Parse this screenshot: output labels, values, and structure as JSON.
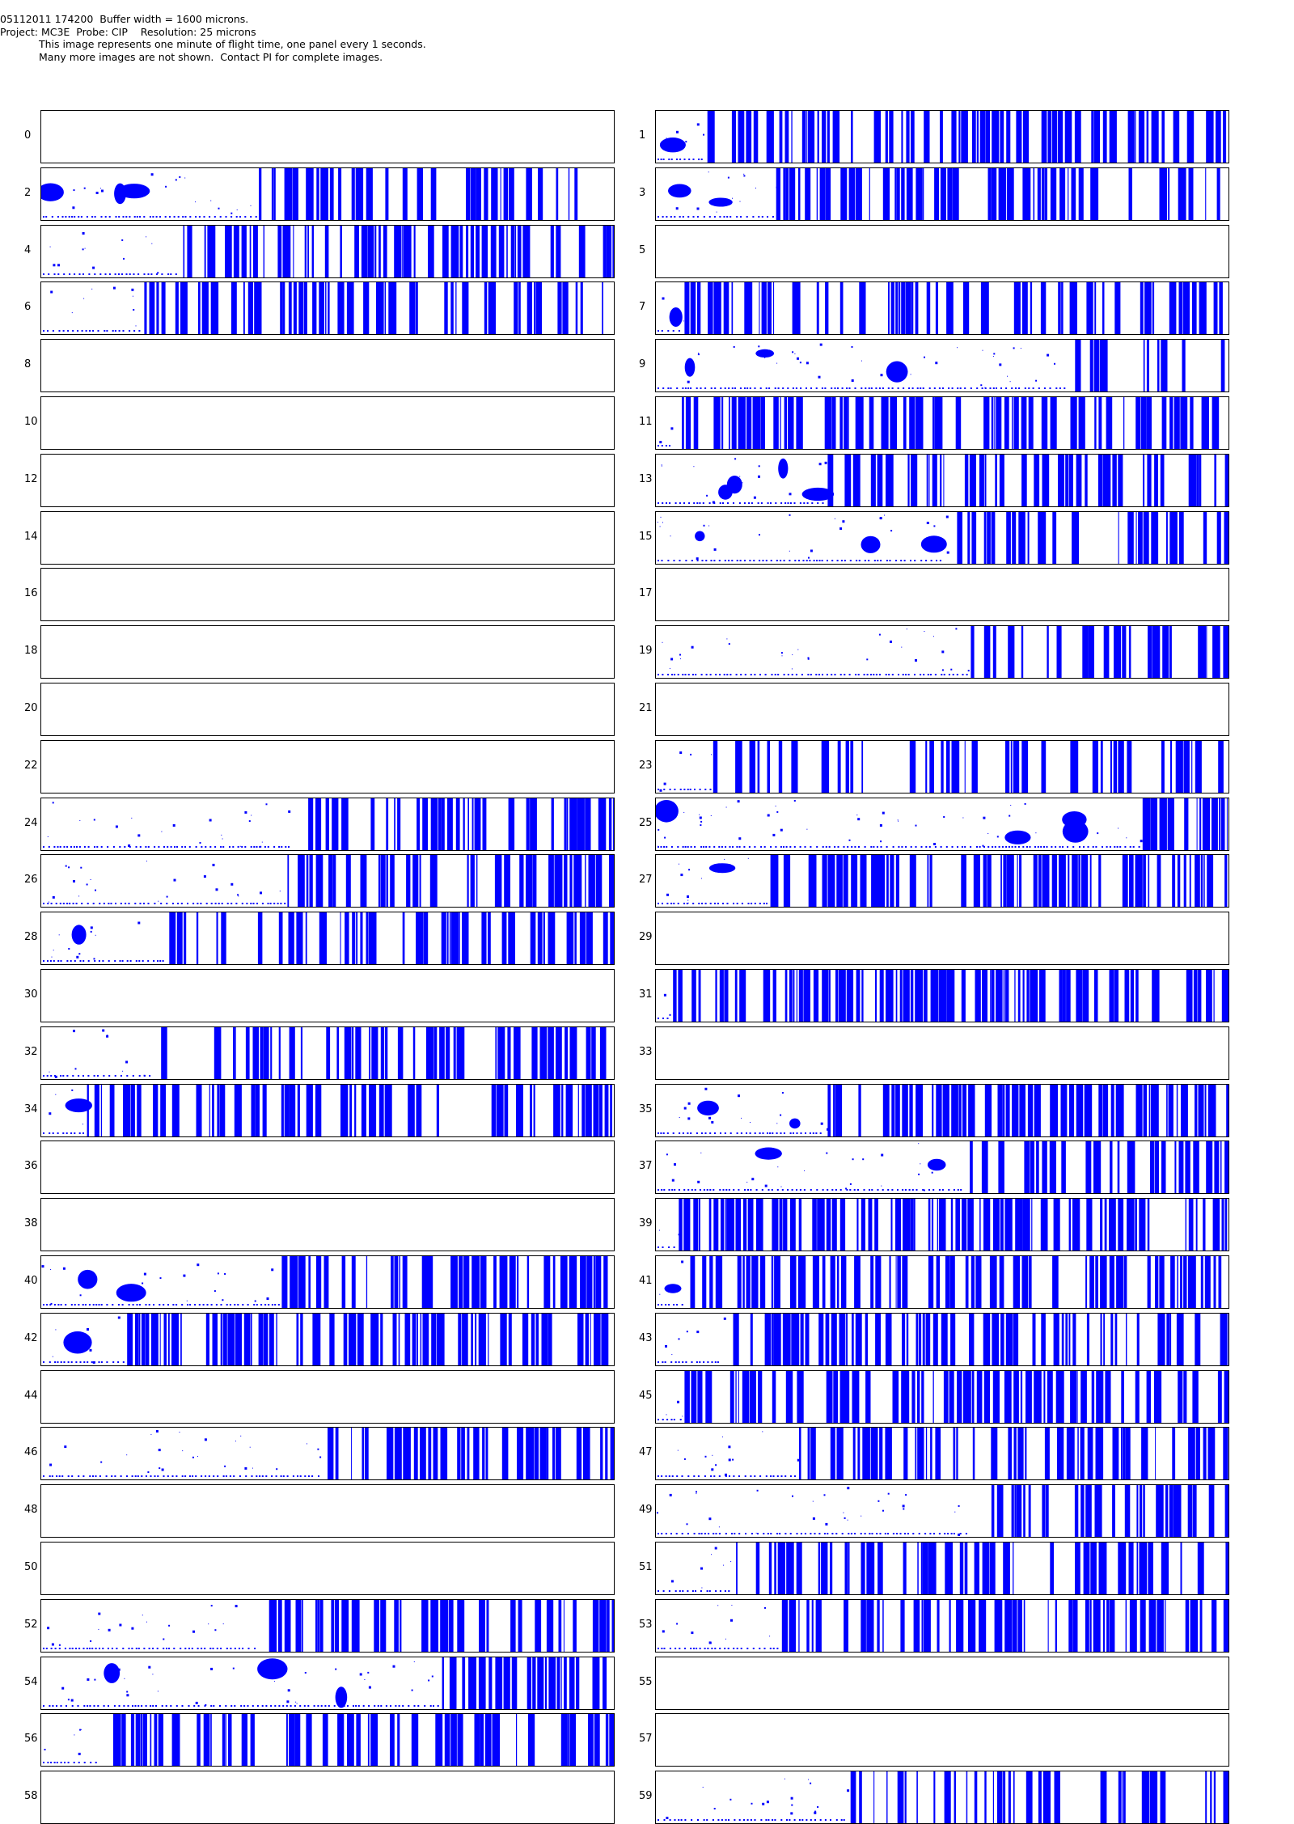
{
  "header": {
    "line1": "05112011 174200  Buffer width = 1600 microns.",
    "line2": "Project: MC3E  Probe: CIP    Resolution: 25 microns",
    "line3": "This image represents one minute of flight time, one panel every 1 seconds.",
    "line4": "Many more images are not shown.  Contact PI for complete images."
  },
  "colors": {
    "particle": "#0000ff",
    "border": "#000000"
  },
  "panels": [
    {
      "label": "0",
      "start": 1.0,
      "density": 0,
      "blobs": 0
    },
    {
      "label": "1",
      "start": 0.09,
      "density": 0.72,
      "blobs": 1
    },
    {
      "label": "2",
      "start": 0.38,
      "density": 0.55,
      "blobs": 3
    },
    {
      "label": "3",
      "start": 0.21,
      "density": 0.6,
      "blobs": 2
    },
    {
      "label": "4",
      "start": 0.24,
      "density": 0.62,
      "blobs": 0
    },
    {
      "label": "5",
      "start": 1.0,
      "density": 0,
      "blobs": 0
    },
    {
      "label": "6",
      "start": 0.18,
      "density": 0.6,
      "blobs": 0
    },
    {
      "label": "7",
      "start": 0.05,
      "density": 0.6,
      "blobs": 1
    },
    {
      "label": "8",
      "start": 1.0,
      "density": 0,
      "blobs": 0
    },
    {
      "label": "9",
      "start": 0.72,
      "density": 0.55,
      "blobs": 3
    },
    {
      "label": "10",
      "start": 1.0,
      "density": 0,
      "blobs": 0
    },
    {
      "label": "11",
      "start": 0.03,
      "density": 0.68,
      "blobs": 0
    },
    {
      "label": "12",
      "start": 1.0,
      "density": 0,
      "blobs": 0
    },
    {
      "label": "13",
      "start": 0.3,
      "density": 0.55,
      "blobs": 4
    },
    {
      "label": "14",
      "start": 1.0,
      "density": 0,
      "blobs": 0
    },
    {
      "label": "15",
      "start": 0.51,
      "density": 0.5,
      "blobs": 3
    },
    {
      "label": "16",
      "start": 1.0,
      "density": 0,
      "blobs": 0
    },
    {
      "label": "17",
      "start": 1.0,
      "density": 0,
      "blobs": 0
    },
    {
      "label": "18",
      "start": 1.0,
      "density": 0,
      "blobs": 0
    },
    {
      "label": "19",
      "start": 0.55,
      "density": 0.5,
      "blobs": 0
    },
    {
      "label": "20",
      "start": 1.0,
      "density": 0,
      "blobs": 0
    },
    {
      "label": "21",
      "start": 1.0,
      "density": 0,
      "blobs": 0
    },
    {
      "label": "22",
      "start": 1.0,
      "density": 0,
      "blobs": 0
    },
    {
      "label": "23",
      "start": 0.1,
      "density": 0.5,
      "blobs": 0
    },
    {
      "label": "24",
      "start": 0.44,
      "density": 0.6,
      "blobs": 0
    },
    {
      "label": "25",
      "start": 0.85,
      "density": 0.6,
      "blobs": 4
    },
    {
      "label": "26",
      "start": 0.43,
      "density": 0.55,
      "blobs": 0
    },
    {
      "label": "27",
      "start": 0.2,
      "density": 0.62,
      "blobs": 1
    },
    {
      "label": "28",
      "start": 0.22,
      "density": 0.58,
      "blobs": 1
    },
    {
      "label": "29",
      "start": 1.0,
      "density": 0,
      "blobs": 0
    },
    {
      "label": "30",
      "start": 1.0,
      "density": 0,
      "blobs": 0
    },
    {
      "label": "31",
      "start": 0.03,
      "density": 0.7,
      "blobs": 0
    },
    {
      "label": "32",
      "start": 0.2,
      "density": 0.55,
      "blobs": 0
    },
    {
      "label": "33",
      "start": 1.0,
      "density": 0,
      "blobs": 0
    },
    {
      "label": "34",
      "start": 0.08,
      "density": 0.65,
      "blobs": 1
    },
    {
      "label": "35",
      "start": 0.3,
      "density": 0.68,
      "blobs": 2
    },
    {
      "label": "36",
      "start": 1.0,
      "density": 0,
      "blobs": 0
    },
    {
      "label": "37",
      "start": 0.54,
      "density": 0.62,
      "blobs": 2
    },
    {
      "label": "38",
      "start": 1.0,
      "density": 0,
      "blobs": 0
    },
    {
      "label": "39",
      "start": 0.04,
      "density": 0.68,
      "blobs": 0
    },
    {
      "label": "40",
      "start": 0.42,
      "density": 0.55,
      "blobs": 2
    },
    {
      "label": "41",
      "start": 0.06,
      "density": 0.6,
      "blobs": 1
    },
    {
      "label": "42",
      "start": 0.15,
      "density": 0.6,
      "blobs": 1
    },
    {
      "label": "43",
      "start": 0.12,
      "density": 0.62,
      "blobs": 0
    },
    {
      "label": "44",
      "start": 1.0,
      "density": 0,
      "blobs": 0
    },
    {
      "label": "45",
      "start": 0.05,
      "density": 0.7,
      "blobs": 0
    },
    {
      "label": "46",
      "start": 0.49,
      "density": 0.55,
      "blobs": 0
    },
    {
      "label": "47",
      "start": 0.25,
      "density": 0.6,
      "blobs": 0
    },
    {
      "label": "48",
      "start": 1.0,
      "density": 0,
      "blobs": 0
    },
    {
      "label": "49",
      "start": 0.55,
      "density": 0.6,
      "blobs": 0
    },
    {
      "label": "50",
      "start": 1.0,
      "density": 0,
      "blobs": 0
    },
    {
      "label": "51",
      "start": 0.14,
      "density": 0.62,
      "blobs": 0
    },
    {
      "label": "52",
      "start": 0.38,
      "density": 0.58,
      "blobs": 0
    },
    {
      "label": "53",
      "start": 0.22,
      "density": 0.6,
      "blobs": 0
    },
    {
      "label": "54",
      "start": 0.7,
      "density": 0.8,
      "blobs": 3
    },
    {
      "label": "55",
      "start": 1.0,
      "density": 0,
      "blobs": 0
    },
    {
      "label": "56",
      "start": 0.1,
      "density": 0.62,
      "blobs": 0
    },
    {
      "label": "57",
      "start": 1.0,
      "density": 0,
      "blobs": 0
    },
    {
      "label": "58",
      "start": 1.0,
      "density": 0,
      "blobs": 0
    },
    {
      "label": "59",
      "start": 0.34,
      "density": 0.6,
      "blobs": 0
    }
  ]
}
